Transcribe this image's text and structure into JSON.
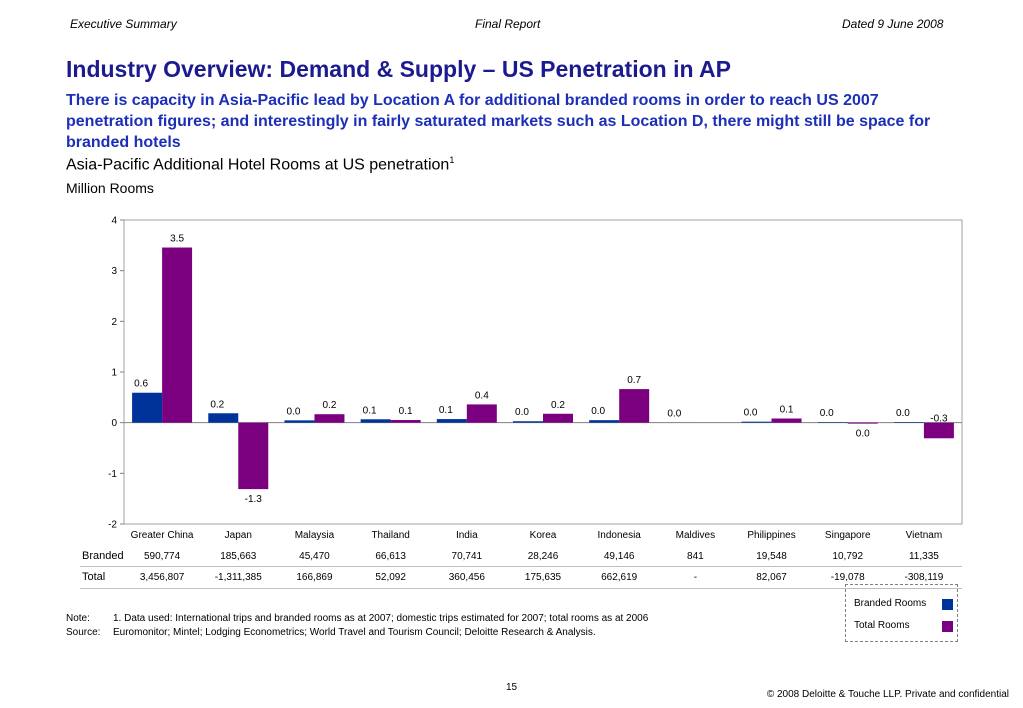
{
  "header": {
    "left": "Executive Summary",
    "center": "Final Report",
    "right": "Dated 9 June 2008"
  },
  "title": "Industry Overview: Demand & Supply – US Penetration in AP",
  "subtitle": "There is capacity in Asia-Pacific lead by Location A for additional branded rooms in order to reach US 2007 penetration figures; and interestingly in fairly saturated markets such as Location D, there might still be space for branded hotels",
  "chart_title": "Asia-Pacific Additional Hotel Rooms at US penetration",
  "chart_title_note": "1",
  "unit_label": "Million Rooms",
  "colors": {
    "branded": "#003399",
    "total": "#7a0080"
  },
  "chart_data": {
    "type": "bar",
    "categories": [
      "Greater China",
      "Japan",
      "Malaysia",
      "Thailand",
      "India",
      "Korea",
      "Indonesia",
      "Maldives",
      "Philippines",
      "Singapore",
      "Vietnam"
    ],
    "series": [
      {
        "name": "Branded Rooms",
        "values": [
          0.590774,
          0.185663,
          0.04547,
          0.066613,
          0.070741,
          0.028246,
          0.049146,
          0.000841,
          0.019548,
          0.010792,
          0.011335
        ],
        "labels": [
          "0.6",
          "0.2",
          "0.0",
          "0.1",
          "0.1",
          "0.0",
          "0.0",
          "0.0",
          "0.0",
          "0.0",
          "0.0"
        ]
      },
      {
        "name": "Total Rooms",
        "values": [
          3.456807,
          -1.311385,
          0.166869,
          0.052092,
          0.360456,
          0.175635,
          0.662619,
          0,
          0.082067,
          -0.019078,
          -0.308119
        ],
        "labels": [
          "3.5",
          "-1.3",
          "0.2",
          "0.1",
          "0.4",
          "0.2",
          "0.7",
          "",
          "0.1",
          "0.0",
          "-0.3"
        ]
      }
    ],
    "ylim": [
      -2,
      4
    ],
    "yticks": [
      "4",
      "3",
      "2",
      "1",
      "0",
      "-1",
      "-2"
    ],
    "legend": "bottom-right"
  },
  "table": {
    "rows": [
      {
        "label": "Branded",
        "values": [
          "590,774",
          "185,663",
          "45,470",
          "66,613",
          "70,741",
          "28,246",
          "49,146",
          "841",
          "19,548",
          "10,792",
          "11,335"
        ]
      },
      {
        "label": "Total",
        "values": [
          "3,456,807",
          "-1,311,385",
          "166,869",
          "52,092",
          "360,456",
          "175,635",
          "662,619",
          "-",
          "82,067",
          "-19,078",
          "-308,119"
        ]
      }
    ]
  },
  "notes": {
    "note_label": "Note:",
    "note_text": "1. Data used: International trips and branded rooms as at 2007; domestic trips estimated for 2007; total rooms as at 2006",
    "source_label": "Source:",
    "source_text": "Euromonitor; Mintel; Lodging Econometrics; World Travel and Tourism Council; Deloitte Research & Analysis."
  },
  "legend_items": [
    "Branded Rooms",
    "Total Rooms"
  ],
  "page_number": "15",
  "copyright": "© 2008 Deloitte & Touche LLP. Private and confidential"
}
